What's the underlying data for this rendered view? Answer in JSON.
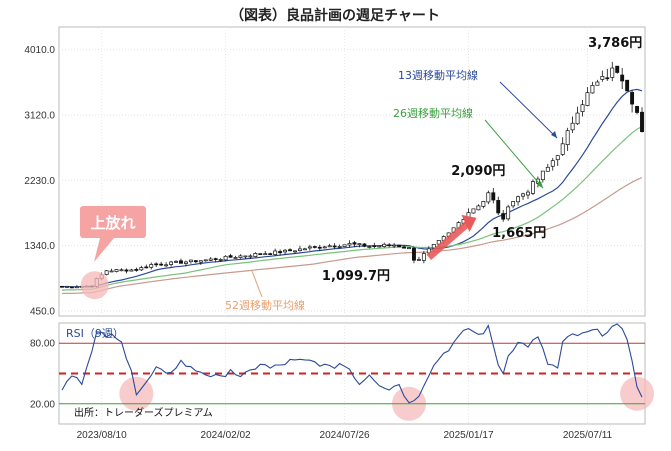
{
  "chart_data": {
    "type": "candlestick",
    "title": "（図表）良品計画の週足チャート",
    "price_panel": {
      "ylim": [
        380,
        4320
      ],
      "y_ticks": [
        "4010.0",
        "3120.0",
        "2230.0",
        "1340.0",
        "450.0"
      ],
      "y_tick_values": [
        4010,
        3120,
        2230,
        1340,
        450
      ],
      "x_ticks": [
        "2023/08/10",
        "2024/02/02",
        "2024/07/26",
        "2025/01/17",
        "2025/07/11"
      ],
      "x_tick_index": [
        8,
        33,
        57,
        82,
        106
      ],
      "n_weeks": 118,
      "price_path_keypoints": [
        [
          0,
          780
        ],
        [
          6,
          790
        ],
        [
          7,
          880
        ],
        [
          9,
          1000
        ],
        [
          15,
          1010
        ],
        [
          18,
          1080
        ],
        [
          22,
          1100
        ],
        [
          30,
          1150
        ],
        [
          40,
          1230
        ],
        [
          45,
          1260
        ],
        [
          52,
          1330
        ],
        [
          58,
          1360
        ],
        [
          62,
          1330
        ],
        [
          67,
          1350
        ],
        [
          70,
          1300
        ],
        [
          71,
          1100
        ],
        [
          74,
          1280
        ],
        [
          78,
          1500
        ],
        [
          82,
          1800
        ],
        [
          85,
          1950
        ],
        [
          86,
          2090
        ],
        [
          88,
          1800
        ],
        [
          89,
          1665
        ],
        [
          90,
          1900
        ],
        [
          94,
          2100
        ],
        [
          98,
          2400
        ],
        [
          101,
          2700
        ],
        [
          104,
          3200
        ],
        [
          107,
          3500
        ],
        [
          110,
          3650
        ],
        [
          112,
          3786
        ],
        [
          114,
          3500
        ],
        [
          116,
          3150
        ],
        [
          117,
          2860
        ]
      ],
      "series": [
        {
          "name": "13週移動平均線",
          "color": "#2b4a9a"
        },
        {
          "name": "26週移動平均線",
          "color": "#79c27a"
        },
        {
          "name": "52週移動平均線",
          "color": "#c99a8e"
        }
      ],
      "annotations": [
        {
          "text": "3,786円",
          "week": 112,
          "value": 3786
        },
        {
          "text": "2,090円",
          "week": 86,
          "value": 2090
        },
        {
          "text": "1,665円",
          "week": 89,
          "value": 1665
        },
        {
          "text": "1,099.7円",
          "week": 71,
          "value": 1099.7
        },
        {
          "text": "上放れ",
          "week": 6,
          "value": 790
        }
      ]
    },
    "rsi_panel": {
      "title": "RSI（9週）",
      "ylim": [
        0,
        100
      ],
      "y_ticks": [
        "80.00",
        "20.00"
      ],
      "y_tick_values": [
        80,
        20
      ],
      "levels": [
        80,
        50,
        20
      ],
      "rsi_keypoints": [
        [
          0,
          35
        ],
        [
          2,
          50
        ],
        [
          4,
          42
        ],
        [
          6,
          70
        ],
        [
          7,
          90
        ],
        [
          8,
          88
        ],
        [
          10,
          87
        ],
        [
          12,
          80
        ],
        [
          14,
          55
        ],
        [
          15,
          30
        ],
        [
          17,
          40
        ],
        [
          19,
          55
        ],
        [
          21,
          48
        ],
        [
          24,
          62
        ],
        [
          26,
          55
        ],
        [
          28,
          52
        ],
        [
          30,
          48
        ],
        [
          32,
          45
        ],
        [
          34,
          55
        ],
        [
          36,
          45
        ],
        [
          38,
          52
        ],
        [
          40,
          60
        ],
        [
          42,
          55
        ],
        [
          44,
          58
        ],
        [
          46,
          62
        ],
        [
          48,
          62
        ],
        [
          50,
          62
        ],
        [
          52,
          60
        ],
        [
          54,
          55
        ],
        [
          56,
          60
        ],
        [
          58,
          55
        ],
        [
          60,
          40
        ],
        [
          62,
          50
        ],
        [
          64,
          40
        ],
        [
          66,
          35
        ],
        [
          68,
          40
        ],
        [
          70,
          20
        ],
        [
          72,
          30
        ],
        [
          74,
          50
        ],
        [
          76,
          65
        ],
        [
          78,
          75
        ],
        [
          80,
          85
        ],
        [
          82,
          95
        ],
        [
          84,
          88
        ],
        [
          86,
          95
        ],
        [
          88,
          60
        ],
        [
          89,
          50
        ],
        [
          90,
          70
        ],
        [
          92,
          80
        ],
        [
          94,
          78
        ],
        [
          96,
          85
        ],
        [
          98,
          60
        ],
        [
          100,
          55
        ],
        [
          101,
          80
        ],
        [
          103,
          88
        ],
        [
          105,
          88
        ],
        [
          107,
          92
        ],
        [
          109,
          90
        ],
        [
          111,
          96
        ],
        [
          112,
          98
        ],
        [
          114,
          85
        ],
        [
          115,
          65
        ],
        [
          116,
          35
        ],
        [
          117,
          28
        ]
      ],
      "source": "出所：トレーダーズプレミアム"
    }
  }
}
